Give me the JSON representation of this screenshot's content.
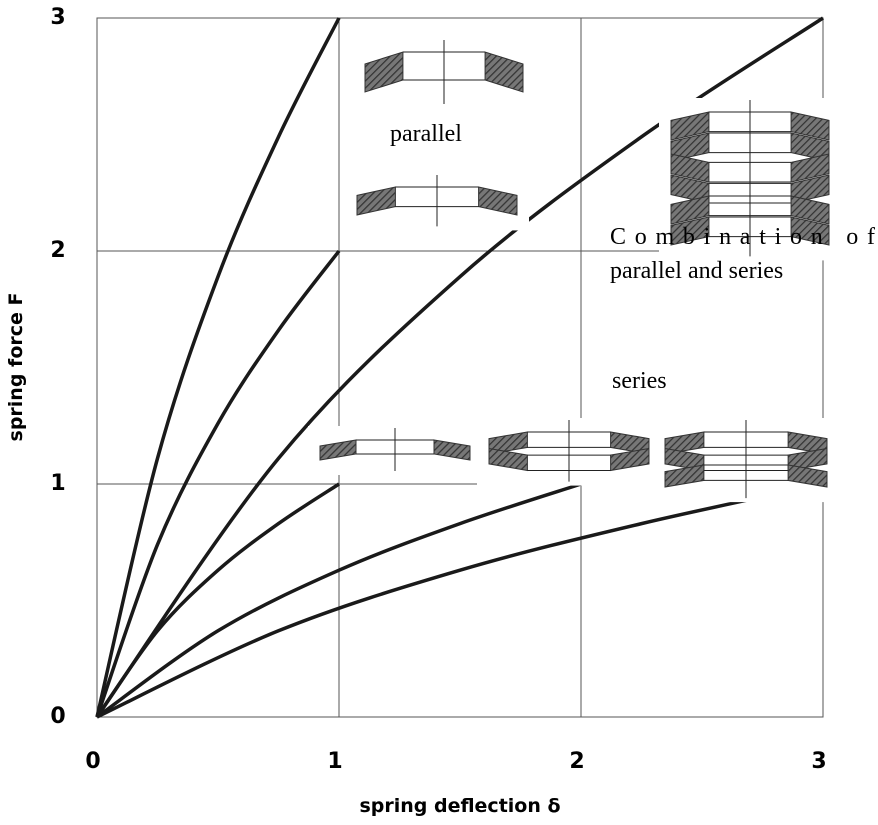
{
  "chart_data": {
    "type": "line",
    "x_label": "spring deflection δ",
    "y_label": "spring force F",
    "annotations": [
      "parallel",
      "Combination of",
      "parallel and series",
      "series"
    ],
    "xlim": [
      0,
      3
    ],
    "ylim": [
      0,
      3
    ],
    "xticks": [
      0,
      1,
      2,
      3
    ],
    "yticks": [
      0,
      1,
      2,
      3
    ],
    "grid": true,
    "color": "#1a1a1a",
    "series": [
      {
        "x": [
          0,
          0.25,
          0.5,
          0.75,
          1
        ],
        "values": [
          0,
          0.37,
          0.63,
          0.83,
          1
        ]
      },
      {
        "x": [
          0,
          0.25,
          0.5,
          0.75,
          1
        ],
        "values": [
          0,
          0.74,
          1.26,
          1.66,
          2
        ]
      },
      {
        "x": [
          0,
          0.25,
          0.5,
          0.75,
          1
        ],
        "values": [
          0,
          1.11,
          1.89,
          2.49,
          3
        ]
      },
      {
        "x": [
          0,
          0.5,
          1,
          1.5,
          2
        ],
        "values": [
          0,
          0.37,
          0.63,
          0.83,
          1
        ]
      },
      {
        "x": [
          0,
          0.75,
          1.5,
          2.25,
          3
        ],
        "values": [
          0,
          0.37,
          0.63,
          0.83,
          1
        ]
      },
      {
        "x": [
          0,
          0.75,
          1.5,
          2.25,
          3
        ],
        "values": [
          0,
          1.11,
          1.89,
          2.49,
          3
        ]
      }
    ]
  }
}
